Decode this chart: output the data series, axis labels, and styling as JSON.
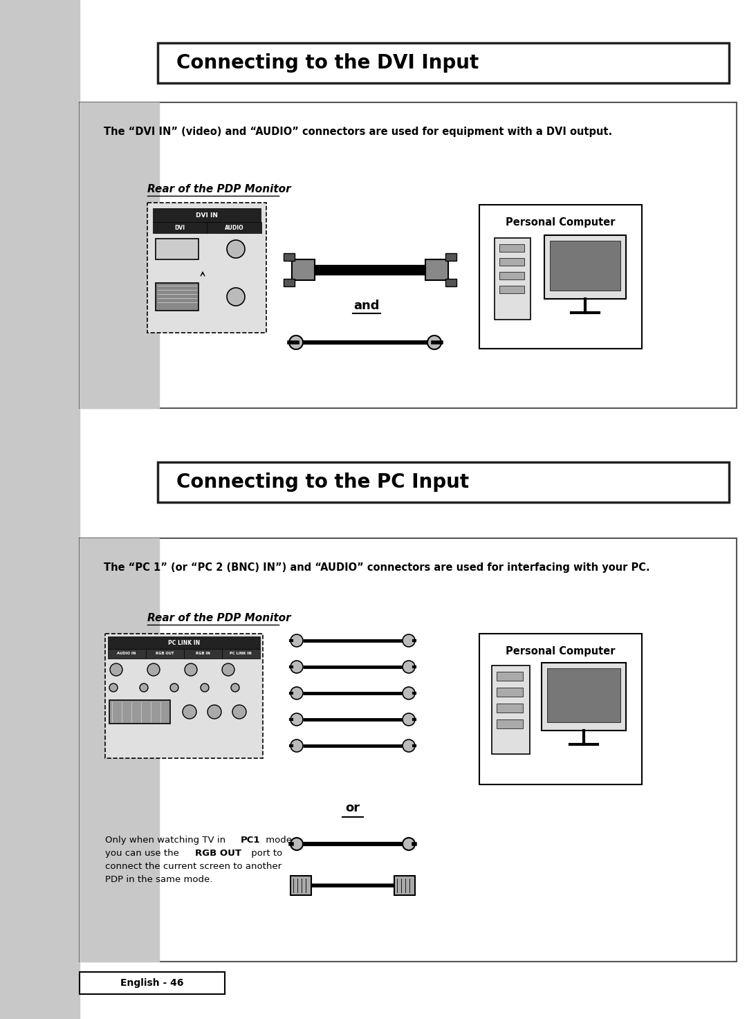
{
  "bg_color": "#ffffff",
  "sidebar_color": "#c8c8c8",
  "title1": "Connecting to the DVI Input",
  "title2": "Connecting to the PC Input",
  "dvi_desc": "The “DVI IN” (video) and “AUDIO” connectors are used for equipment with a DVI output.",
  "pc_desc": "The “PC 1” (or “PC 2 (BNC) IN”) and “AUDIO” connectors are used for interfacing with your PC.",
  "rear_label": "Rear of the PDP Monitor",
  "personal_computer": "Personal Computer",
  "and_text": "and",
  "or_text": "or",
  "footer": "English - 46"
}
